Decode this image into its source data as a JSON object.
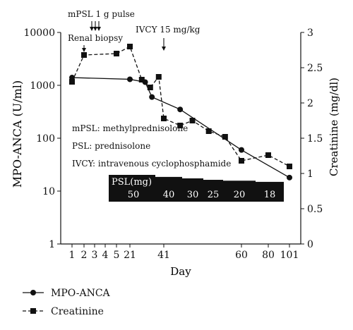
{
  "chart_data": {
    "type": "line",
    "x_ticks": [
      "1",
      "2",
      "3",
      "4",
      "5",
      "21",
      "41",
      "60",
      "80",
      "101"
    ],
    "xlabel": "Day",
    "y_left": {
      "label": "MPO-ANCA (U/ml)",
      "scale": "log",
      "range": [
        1,
        10000
      ],
      "ticks": [
        "1",
        "10",
        "100",
        "1000",
        "10000"
      ]
    },
    "y_right": {
      "label": "Creatinine (mg/dl)",
      "scale": "linear",
      "range": [
        0,
        3
      ],
      "ticks": [
        "0",
        "0.5",
        "1",
        "1.5",
        "2",
        "2.5",
        "3"
      ]
    },
    "series": [
      {
        "name": "MPO-ANCA",
        "axis": "left",
        "marker": "circle",
        "line": "solid",
        "points": [
          {
            "day": "1",
            "value": 1400
          },
          {
            "day": "21",
            "value": 1300
          },
          {
            "day": "~30",
            "value": 1150
          },
          {
            "day": "~34",
            "value": 600
          },
          {
            "day": "~45",
            "value": 350
          },
          {
            "day": "~60",
            "value": 60
          },
          {
            "day": "101",
            "value": 18
          }
        ]
      },
      {
        "name": "Creatinine",
        "axis": "right",
        "marker": "square",
        "line": "dashed",
        "points": [
          {
            "day": "1",
            "value": 2.3
          },
          {
            "day": "2",
            "value": 2.68
          },
          {
            "day": "5",
            "value": 2.7
          },
          {
            "day": "21",
            "value": 2.8
          },
          {
            "day": "~28",
            "value": 2.33
          },
          {
            "day": "~33",
            "value": 2.22
          },
          {
            "day": "~38",
            "value": 2.37
          },
          {
            "day": "~41",
            "value": 1.78
          },
          {
            "day": "~45",
            "value": 1.68
          },
          {
            "day": "~48",
            "value": 1.75
          },
          {
            "day": "~52",
            "value": 1.6
          },
          {
            "day": "~56",
            "value": 1.52
          },
          {
            "day": "60",
            "value": 1.18
          },
          {
            "day": "80",
            "value": 1.26
          },
          {
            "day": "101",
            "value": 1.1
          }
        ]
      }
    ],
    "psl_dose": {
      "label": "PSL(mg)",
      "steps": [
        {
          "dose": "50",
          "level": 0.92
        },
        {
          "dose": "40",
          "level": 0.85
        },
        {
          "dose": "30",
          "level": 0.8
        },
        {
          "dose": "25",
          "level": 0.75
        },
        {
          "dose": "20",
          "level": 0.72
        },
        {
          "dose": "18",
          "level": 0.68
        }
      ]
    },
    "annotations": {
      "mpsl": "mPSL 1 g pulse",
      "biopsy": "Renal biopsy",
      "ivcy": "IVCY 15 mg/kg",
      "abbrev": [
        "mPSL: methylprednisolone",
        "PSL: prednisolone",
        "IVCY: intravenous cyclophosphamide"
      ]
    },
    "legend": {
      "placement": "bottom-left",
      "entries": [
        "MPO-ANCA",
        "Creatinine"
      ]
    }
  }
}
